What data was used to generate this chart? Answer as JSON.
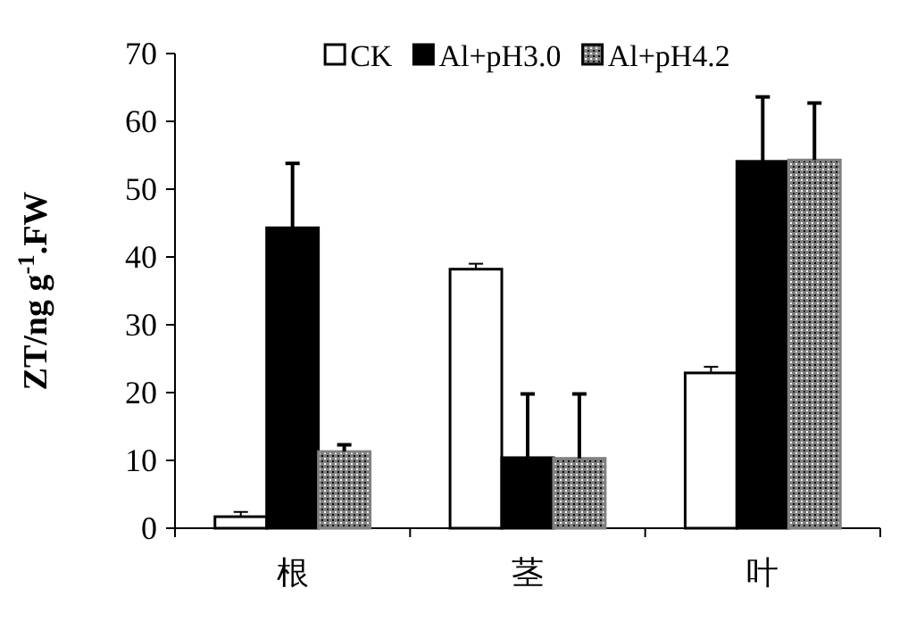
{
  "chart_data": {
    "type": "bar",
    "ylabel": "ZT/ng g$^{-1}$.FW",
    "categories": [
      "根",
      "茎",
      "叶"
    ],
    "series": [
      {
        "name": "CK",
        "color": "#ffffff",
        "values": [
          1.7,
          38.2,
          22.9
        ],
        "errors": [
          [
            1.7,
            2.4
          ],
          [
            38.2,
            39.0
          ],
          [
            22.9,
            23.8
          ]
        ]
      },
      {
        "name": "Al+pH3.0",
        "color": "#000000",
        "values": [
          44.3,
          10.4,
          54.1
        ],
        "errors": [
          [
            44.3,
            53.8
          ],
          [
            10.4,
            19.8
          ],
          [
            54.1,
            63.6
          ]
        ]
      },
      {
        "name": "Al+pH4.2",
        "color": "#808080",
        "values": [
          11.3,
          10.3,
          54.3
        ],
        "errors": [
          [
            11.3,
            12.3
          ],
          [
            10.3,
            19.8
          ],
          [
            54.3,
            62.7
          ]
        ]
      }
    ],
    "ylim": [
      0,
      70
    ],
    "yticks": [
      0,
      10,
      20,
      30,
      40,
      50,
      60,
      70
    ],
    "legend": "top"
  }
}
